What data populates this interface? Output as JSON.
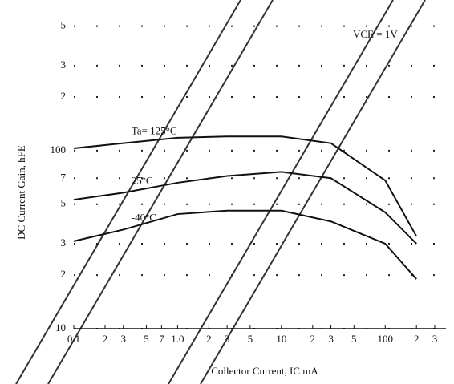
{
  "chart_data": {
    "type": "line",
    "y_label": "DC Current Gain, hFE",
    "x_label": "Collector Current, IC   mA",
    "annotation": "VCE = 1V",
    "log_x": true,
    "log_y": true,
    "grid": true,
    "x": [
      0.1,
      0.3,
      1,
      3,
      10,
      30,
      100,
      200
    ],
    "series": [
      {
        "name": "Ta= 125°C",
        "color": "#111111",
        "values": [
          103,
          110,
          118,
          120,
          120,
          110,
          68,
          33
        ]
      },
      {
        "name": "25°C",
        "color": "#111111",
        "values": [
          53,
          58,
          66,
          72,
          76,
          70,
          45,
          30
        ]
      },
      {
        "name": "-40°C",
        "color": "#111111",
        "values": [
          31,
          36,
          44,
          46,
          46,
          40,
          30,
          19
        ]
      }
    ],
    "xlim": [
      0.1,
      300
    ],
    "xticks": [
      0.1,
      {
        "value": 0.2,
        "label": "2"
      },
      {
        "value": 0.3,
        "label": "3"
      },
      {
        "value": 0.5,
        "label": "5"
      },
      {
        "value": 0.7,
        "label": "7"
      },
      {
        "value": 1,
        "label": "1.0"
      },
      2,
      3,
      5,
      10,
      {
        "value": 20,
        "label": "2"
      },
      {
        "value": 30,
        "label": "3"
      },
      {
        "value": 50,
        "label": "5"
      },
      100,
      {
        "value": 200,
        "label": "2"
      },
      {
        "value": 300,
        "label": "3"
      }
    ],
    "ylim": [
      10,
      600
    ],
    "yticks": [
      10,
      {
        "value": 20,
        "label": "2"
      },
      {
        "value": 30,
        "label": "3"
      },
      {
        "value": 50,
        "label": "5"
      },
      {
        "value": 70,
        "label": "7"
      },
      100,
      {
        "value": 200,
        "label": "2"
      },
      {
        "value": 300,
        "label": "3"
      },
      {
        "value": 500,
        "label": "5"
      }
    ]
  }
}
